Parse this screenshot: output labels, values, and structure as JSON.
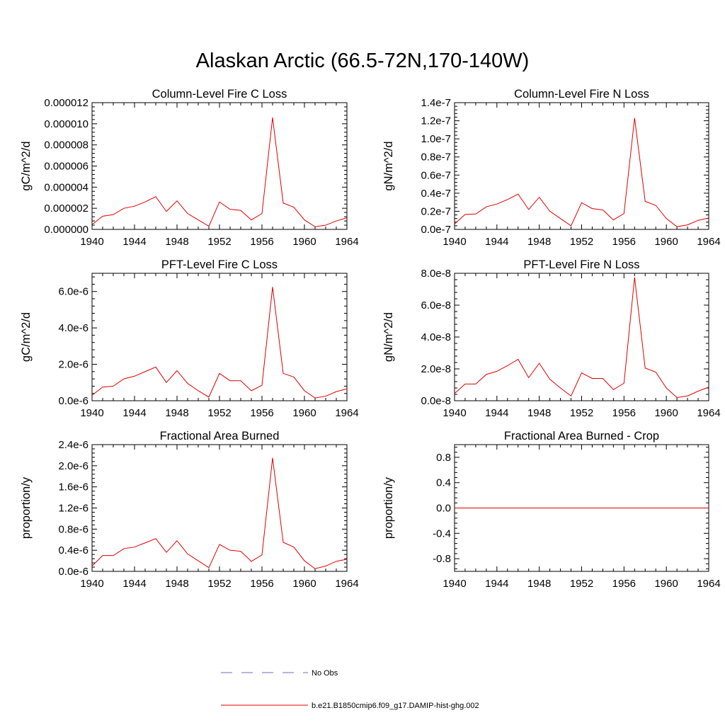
{
  "title": "Alaskan Arctic (66.5-72N,170-140W)",
  "legend": {
    "items": [
      {
        "label": "No Obs",
        "color": "#6c6cbf",
        "style": "dashed"
      },
      {
        "label": "b.e21.B1850cmip6.f09_g17.DAMIP-hist-ghg.002",
        "color": "#e00000",
        "style": "solid"
      }
    ]
  },
  "line_color": "#e00000",
  "chart_data": [
    {
      "type": "line",
      "title": "Column-Level Fire C Loss",
      "ylabel": "gC/m^2/d",
      "xlim": [
        1940,
        1964
      ],
      "ylim": [
        0,
        1.2e-05
      ],
      "x_ticks": [
        1940,
        1944,
        1948,
        1952,
        1956,
        1960,
        1964
      ],
      "y_ticks": [
        0,
        2e-06,
        4e-06,
        6e-06,
        8e-06,
        1e-05,
        1.2e-05
      ],
      "y_tick_labels": [
        "0.000000",
        "0.000002",
        "0.000004",
        "0.000006",
        "0.000008",
        "0.000010",
        "0.000012"
      ],
      "x": [
        1940,
        1941,
        1942,
        1943,
        1944,
        1945,
        1946,
        1947,
        1948,
        1949,
        1950,
        1951,
        1952,
        1953,
        1954,
        1955,
        1956,
        1957,
        1958,
        1959,
        1960,
        1961,
        1962,
        1963,
        1964
      ],
      "series": [
        {
          "values": [
            4.5e-07,
            1.25e-06,
            1.4e-06,
            2e-06,
            2.2e-06,
            2.6e-06,
            3.1e-06,
            1.7e-06,
            2.7e-06,
            1.5e-06,
            9e-07,
            3e-07,
            2.6e-06,
            1.9e-06,
            1.8e-06,
            9e-07,
            1.5e-06,
            1.06e-05,
            2.5e-06,
            2.1e-06,
            9e-07,
            2.5e-07,
            4e-07,
            8e-07,
            1.1e-06
          ]
        }
      ]
    },
    {
      "type": "line",
      "title": "Column-Level Fire N Loss",
      "ylabel": "gN/m^2/d",
      "xlim": [
        1940,
        1964
      ],
      "ylim": [
        0,
        1.4e-07
      ],
      "x_ticks": [
        1940,
        1944,
        1948,
        1952,
        1956,
        1960,
        1964
      ],
      "y_ticks": [
        0,
        2e-08,
        4e-08,
        6e-08,
        8e-08,
        1e-07,
        1.2e-07,
        1.4e-07
      ],
      "y_tick_labels": [
        "0.0e-7",
        "0.2e-7",
        "0.4e-7",
        "0.6e-7",
        "0.8e-7",
        "1.0e-7",
        "1.2e-7",
        "1.4e-7"
      ],
      "x": [
        1940,
        1941,
        1942,
        1943,
        1944,
        1945,
        1946,
        1947,
        1948,
        1949,
        1950,
        1951,
        1952,
        1953,
        1954,
        1955,
        1956,
        1957,
        1958,
        1959,
        1960,
        1961,
        1962,
        1963,
        1964
      ],
      "series": [
        {
          "values": [
            6e-09,
            1.65e-08,
            1.7e-08,
            2.5e-08,
            2.8e-08,
            3.3e-08,
            3.9e-08,
            2.2e-08,
            3.55e-08,
            2e-08,
            1.2e-08,
            4e-09,
            2.95e-08,
            2.3e-08,
            2.15e-08,
            1.05e-08,
            1.75e-08,
            1.23e-07,
            3.1e-08,
            2.65e-08,
            1.2e-08,
            3e-09,
            5e-09,
            1e-08,
            1.25e-08
          ]
        }
      ]
    },
    {
      "type": "line",
      "title": "PFT-Level Fire C Loss",
      "ylabel": "gC/m^2/d",
      "xlim": [
        1940,
        1964
      ],
      "ylim": [
        0,
        7e-06
      ],
      "x_ticks": [
        1940,
        1944,
        1948,
        1952,
        1956,
        1960,
        1964
      ],
      "y_ticks": [
        0,
        2e-06,
        4e-06,
        6e-06
      ],
      "y_tick_labels": [
        "0.0e-6",
        "2.0e-6",
        "4.0e-6",
        "6.0e-6"
      ],
      "x": [
        1940,
        1941,
        1942,
        1943,
        1944,
        1945,
        1946,
        1947,
        1948,
        1949,
        1950,
        1951,
        1952,
        1953,
        1954,
        1955,
        1956,
        1957,
        1958,
        1959,
        1960,
        1961,
        1962,
        1963,
        1964
      ],
      "series": [
        {
          "values": [
            3e-07,
            7.5e-07,
            8e-07,
            1.2e-06,
            1.35e-06,
            1.6e-06,
            1.85e-06,
            1e-06,
            1.65e-06,
            9.5e-07,
            5.5e-07,
            2e-07,
            1.5e-06,
            1.1e-06,
            1.1e-06,
            5.5e-07,
            8.5e-07,
            6.25e-06,
            1.5e-06,
            1.3e-06,
            5.5e-07,
            1.5e-07,
            2.5e-07,
            5e-07,
            6.5e-07
          ]
        }
      ]
    },
    {
      "type": "line",
      "title": "PFT-Level Fire N Loss",
      "ylabel": "gN/m^2/d",
      "xlim": [
        1940,
        1964
      ],
      "ylim": [
        0,
        8e-08
      ],
      "x_ticks": [
        1940,
        1944,
        1948,
        1952,
        1956,
        1960,
        1964
      ],
      "y_ticks": [
        0,
        2e-08,
        4e-08,
        6e-08,
        8e-08
      ],
      "y_tick_labels": [
        "0.0e-8",
        "2.0e-8",
        "4.0e-8",
        "6.0e-8",
        "8.0e-8"
      ],
      "x": [
        1940,
        1941,
        1942,
        1943,
        1944,
        1945,
        1946,
        1947,
        1948,
        1949,
        1950,
        1951,
        1952,
        1953,
        1954,
        1955,
        1956,
        1957,
        1958,
        1959,
        1960,
        1961,
        1962,
        1963,
        1964
      ],
      "series": [
        {
          "values": [
            4.5e-09,
            1.05e-08,
            1.05e-08,
            1.65e-08,
            1.85e-08,
            2.2e-08,
            2.6e-08,
            1.45e-08,
            2.35e-08,
            1.35e-08,
            8e-09,
            3e-09,
            1.75e-08,
            1.4e-08,
            1.4e-08,
            7e-09,
            1.1e-08,
            7.75e-08,
            2.05e-08,
            1.8e-08,
            8e-09,
            2e-09,
            3e-09,
            6e-09,
            8.5e-09
          ]
        }
      ]
    },
    {
      "type": "line",
      "title": "Fractional Area Burned",
      "ylabel": "proportion/y",
      "xlim": [
        1940,
        1964
      ],
      "ylim": [
        0,
        2.4e-06
      ],
      "x_ticks": [
        1940,
        1944,
        1948,
        1952,
        1956,
        1960,
        1964
      ],
      "y_ticks": [
        0,
        4e-07,
        8e-07,
        1.2e-06,
        1.6e-06,
        2e-06,
        2.4e-06
      ],
      "y_tick_labels": [
        "0.0e-6",
        "0.4e-6",
        "0.8e-6",
        "1.2e-6",
        "1.6e-6",
        "2.0e-6",
        "2.4e-6"
      ],
      "x": [
        1940,
        1941,
        1942,
        1943,
        1944,
        1945,
        1946,
        1947,
        1948,
        1949,
        1950,
        1951,
        1952,
        1953,
        1954,
        1955,
        1956,
        1957,
        1958,
        1959,
        1960,
        1961,
        1962,
        1963,
        1964
      ],
      "series": [
        {
          "values": [
            1e-07,
            3e-07,
            3e-07,
            4.3e-07,
            4.6e-07,
            5.4e-07,
            6.2e-07,
            3.6e-07,
            5.8e-07,
            3.3e-07,
            2e-07,
            7e-08,
            5.1e-07,
            4e-07,
            3.8e-07,
            1.9e-07,
            3.1e-07,
            2.15e-06,
            5.5e-07,
            4.6e-07,
            2e-07,
            5e-08,
            1e-07,
            1.9e-07,
            2.3e-07
          ]
        }
      ]
    },
    {
      "type": "line",
      "title": "Fractional Area Burned - Crop",
      "ylabel": "proportion/y",
      "xlim": [
        1940,
        1964
      ],
      "ylim": [
        -1,
        1
      ],
      "x_ticks": [
        1940,
        1944,
        1948,
        1952,
        1956,
        1960,
        1964
      ],
      "y_ticks": [
        -0.8,
        -0.4,
        0,
        0.4,
        0.8
      ],
      "y_tick_labels": [
        "-0.8",
        "-0.4",
        "0.0",
        "0.4",
        "0.8"
      ],
      "x": [
        1940,
        1964
      ],
      "series": [
        {
          "values": [
            0,
            0
          ]
        }
      ]
    }
  ]
}
